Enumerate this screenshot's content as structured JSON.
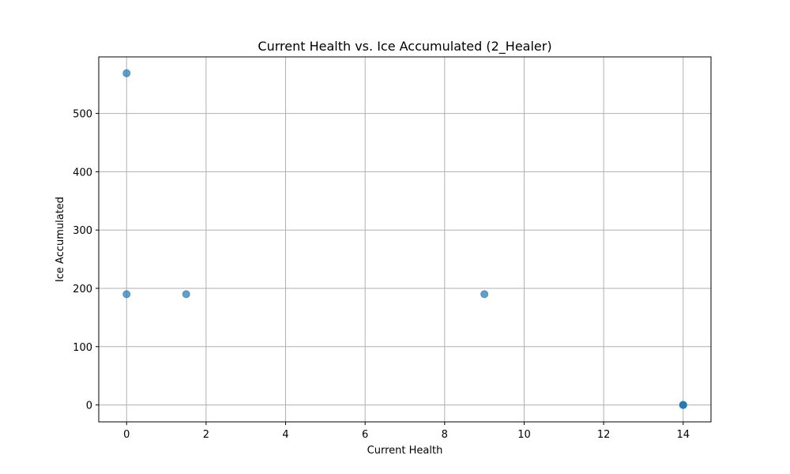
{
  "chart_data": {
    "type": "scatter",
    "title": "Current Health vs. Ice Accumulated (2_Healer)",
    "xlabel": "Current Health",
    "ylabel": "Ice Accumulated",
    "xlim": [
      -0.7,
      14.7
    ],
    "ylim": [
      -29,
      597
    ],
    "xticks": [
      0,
      2,
      4,
      6,
      8,
      10,
      12,
      14
    ],
    "yticks": [
      0,
      100,
      200,
      300,
      400,
      500
    ],
    "grid": true,
    "marker_color": "#1f77b4",
    "marker_alpha": 0.7,
    "points": [
      {
        "x": 0,
        "y": 569
      },
      {
        "x": 0,
        "y": 190
      },
      {
        "x": 1.5,
        "y": 190
      },
      {
        "x": 9,
        "y": 190
      },
      {
        "x": 14,
        "y": 0
      },
      {
        "x": 14,
        "y": 0
      },
      {
        "x": 14,
        "y": 0
      }
    ]
  }
}
